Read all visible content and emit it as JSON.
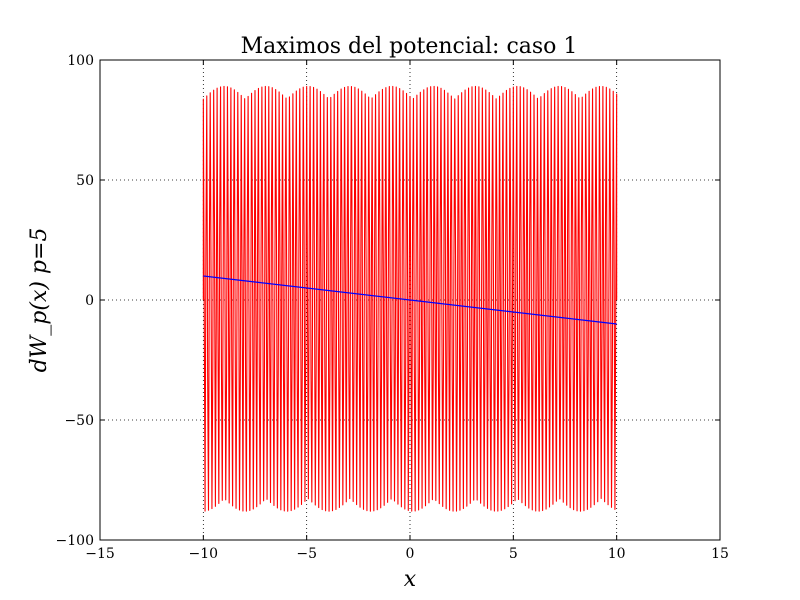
{
  "chart_data": {
    "type": "line",
    "title": "Maximos del potencial: caso 1",
    "xlabel": "x",
    "ylabel": "dW_p(x) p=5",
    "xlim": [
      -15,
      15
    ],
    "ylim": [
      -100,
      100
    ],
    "xticks": [
      -15,
      -10,
      -5,
      0,
      5,
      10,
      15
    ],
    "yticks": [
      -100,
      -50,
      0,
      50,
      100
    ],
    "xtick_labels": [
      "−15",
      "−10",
      "−5",
      "0",
      "5",
      "10",
      "15"
    ],
    "ytick_labels": [
      "−100",
      "−50",
      "0",
      "50",
      "100"
    ],
    "grid": true,
    "series": [
      {
        "color": "#ff0000",
        "kind": "oscillation",
        "x_range": [
          -10,
          10
        ],
        "amplitude_range": [
          -88,
          89
        ],
        "cycles": 120
      },
      {
        "color": "#0000ff",
        "kind": "linear",
        "x": [
          -10,
          10
        ],
        "y": [
          10,
          -10
        ]
      }
    ]
  }
}
